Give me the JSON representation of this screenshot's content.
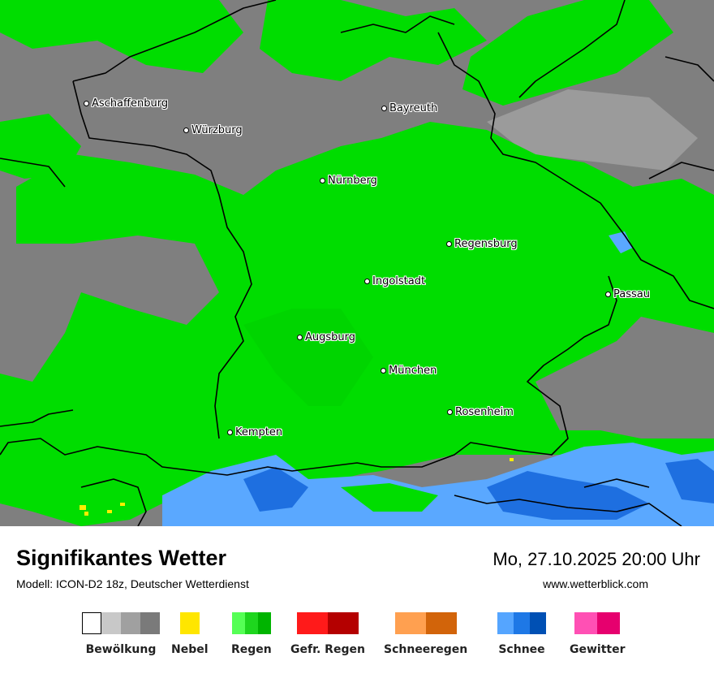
{
  "map": {
    "cities": [
      {
        "name": "Aschaffenburg",
        "icon": "city-dot-icon"
      },
      {
        "name": "Bayreuth",
        "icon": "city-dot-icon"
      },
      {
        "name": "Würzburg",
        "icon": "city-dot-icon"
      },
      {
        "name": "Nürnberg",
        "icon": "city-dot-icon"
      },
      {
        "name": "Regensburg",
        "icon": "city-dot-icon"
      },
      {
        "name": "Ingolstadt",
        "icon": "city-dot-icon"
      },
      {
        "name": "Passau",
        "icon": "city-dot-icon"
      },
      {
        "name": "Augsburg",
        "icon": "city-dot-icon"
      },
      {
        "name": "München",
        "icon": "city-dot-icon"
      },
      {
        "name": "Rosenheim",
        "icon": "city-dot-icon"
      },
      {
        "name": "Kempten",
        "icon": "city-dot-icon"
      }
    ],
    "colors": {
      "cloud_base": "#7f7f7f",
      "cloud_light": "#a6a6a6",
      "cloud_lighter": "#bdbdbd",
      "rain": "#00dd00",
      "snow_light": "#5aa8ff",
      "snow_dark": "#1e6fe0",
      "fog": "#ffee00",
      "border": "#000000"
    }
  },
  "footer": {
    "title": "Signifikantes Wetter",
    "subtitle": "Modell: ICON-D2 18z, Deutscher Wetterdienst",
    "datetime": "Mo, 27.10.2025 20:00 Uhr",
    "website": "www.wetterblick.com"
  },
  "legend": [
    {
      "label": "Bewölkung",
      "colors": [
        "#ffffff",
        "#c8c8c8",
        "#a0a0a0",
        "#7a7a7a"
      ]
    },
    {
      "label": "Nebel",
      "colors": [
        "#ffe600"
      ]
    },
    {
      "label": "Regen",
      "colors": [
        "#55ff55",
        "#1ed61e",
        "#00b400"
      ]
    },
    {
      "label": "Gefr. Regen",
      "colors": [
        "#ff1a1a",
        "#b40000"
      ]
    },
    {
      "label": "Schneeregen",
      "colors": [
        "#ffa050",
        "#d2640a"
      ]
    },
    {
      "label": "Schnee",
      "colors": [
        "#55a5ff",
        "#1e78e6",
        "#0050b4"
      ]
    },
    {
      "label": "Gewitter",
      "colors": [
        "#ff50b4",
        "#e6006e"
      ]
    }
  ]
}
